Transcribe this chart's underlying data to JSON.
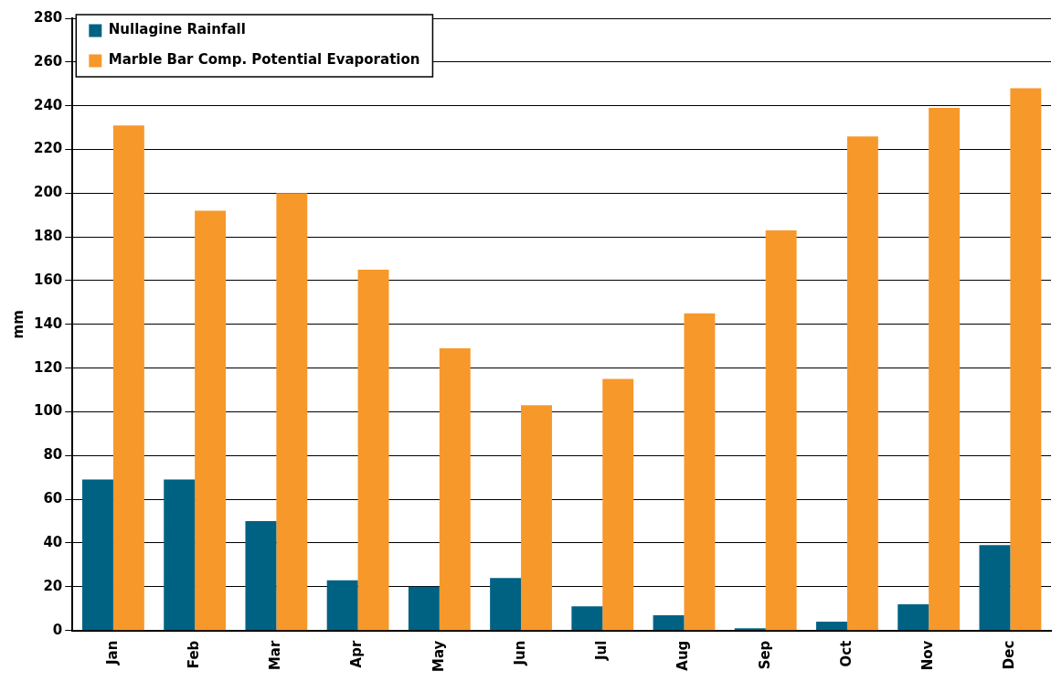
{
  "chart_data": {
    "type": "bar",
    "ylabel": "mm",
    "categories": [
      "Jan",
      "Feb",
      "Mar",
      "Apr",
      "May",
      "Jun",
      "Jul",
      "Aug",
      "Sep",
      "Oct",
      "Nov",
      "Dec"
    ],
    "series": [
      {
        "name": "Nullagine Rainfall",
        "color": "#006283",
        "values": [
          69,
          69,
          50,
          23,
          20,
          24,
          11,
          7,
          1,
          4,
          12,
          39
        ]
      },
      {
        "name": "Marble Bar Comp. Potential Evaporation",
        "color": "#f7982a",
        "values": [
          231,
          192,
          200,
          165,
          129,
          103,
          115,
          145,
          183,
          226,
          239,
          248
        ]
      }
    ],
    "ylim": [
      0,
      280
    ],
    "yticks": [
      0,
      20,
      40,
      60,
      80,
      100,
      120,
      140,
      160,
      180,
      200,
      220,
      240,
      260,
      280
    ],
    "grid": "y",
    "legend": "top left"
  }
}
